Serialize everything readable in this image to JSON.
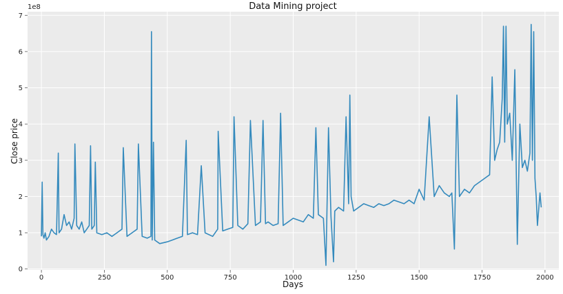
{
  "chart_data": {
    "type": "line",
    "title": "Data Mining project",
    "xlabel": "Days",
    "ylabel": "Close price",
    "y_offset_label": "1e8",
    "xlim": [
      -55,
      2055
    ],
    "ylim": [
      -2500000,
      710000000
    ],
    "x_ticks": [
      0,
      250,
      500,
      750,
      1000,
      1250,
      1500,
      1750,
      2000
    ],
    "x_tick_labels": [
      "0",
      "250",
      "500",
      "750",
      "1000",
      "1250",
      "1500",
      "1750",
      "2000"
    ],
    "y_ticks": [
      0,
      100000000,
      200000000,
      300000000,
      400000000,
      500000000,
      600000000,
      700000000
    ],
    "y_tick_labels": [
      "0",
      "1",
      "2",
      "3",
      "4",
      "5",
      "6",
      "7"
    ],
    "grid": true,
    "background": "#ebebeb",
    "grid_color": "#ffffff",
    "line_color": "#348abd",
    "series": [
      {
        "x": [
          0,
          3,
          6,
          10,
          15,
          20,
          30,
          40,
          50,
          60,
          67,
          70,
          80,
          90,
          100,
          110,
          120,
          130,
          133,
          140,
          150,
          160,
          170,
          180,
          190,
          195,
          200,
          210,
          214,
          220,
          240,
          260,
          280,
          300,
          320,
          325,
          340,
          360,
          380,
          385,
          400,
          420,
          435,
          437,
          440,
          445,
          450,
          470,
          500,
          520,
          540,
          560,
          575,
          580,
          600,
          620,
          635,
          650,
          680,
          700,
          702,
          720,
          740,
          760,
          765,
          780,
          800,
          820,
          830,
          850,
          870,
          880,
          890,
          900,
          920,
          940,
          950,
          960,
          980,
          1000,
          1020,
          1040,
          1060,
          1080,
          1090,
          1100,
          1120,
          1130,
          1140,
          1150,
          1160,
          1165,
          1180,
          1200,
          1210,
          1220,
          1225,
          1230,
          1240,
          1260,
          1280,
          1300,
          1320,
          1340,
          1360,
          1380,
          1400,
          1420,
          1440,
          1460,
          1480,
          1500,
          1520,
          1540,
          1560,
          1580,
          1600,
          1620,
          1630,
          1640,
          1650,
          1660,
          1680,
          1700,
          1720,
          1740,
          1760,
          1780,
          1790,
          1800,
          1810,
          1820,
          1830,
          1835,
          1840,
          1845,
          1850,
          1860,
          1870,
          1880,
          1890,
          1900,
          1910,
          1920,
          1930,
          1940,
          1945,
          1950,
          1955,
          1960,
          1965,
          1970,
          1980,
          1985
        ],
        "y": [
          90000000,
          240000000,
          95000000,
          85000000,
          100000000,
          80000000,
          90000000,
          110000000,
          100000000,
          95000000,
          320000000,
          100000000,
          110000000,
          150000000,
          120000000,
          130000000,
          110000000,
          140000000,
          345000000,
          120000000,
          110000000,
          130000000,
          100000000,
          110000000,
          120000000,
          340000000,
          110000000,
          120000000,
          295000000,
          100000000,
          95000000,
          100000000,
          90000000,
          100000000,
          110000000,
          335000000,
          90000000,
          100000000,
          110000000,
          345000000,
          90000000,
          85000000,
          90000000,
          655000000,
          80000000,
          350000000,
          80000000,
          70000000,
          75000000,
          80000000,
          85000000,
          90000000,
          355000000,
          95000000,
          100000000,
          95000000,
          285000000,
          100000000,
          90000000,
          110000000,
          380000000,
          105000000,
          110000000,
          115000000,
          420000000,
          120000000,
          110000000,
          125000000,
          410000000,
          120000000,
          130000000,
          410000000,
          125000000,
          130000000,
          120000000,
          125000000,
          430000000,
          120000000,
          130000000,
          140000000,
          135000000,
          130000000,
          150000000,
          140000000,
          390000000,
          150000000,
          140000000,
          10000000,
          390000000,
          145000000,
          20000000,
          160000000,
          170000000,
          160000000,
          420000000,
          180000000,
          480000000,
          200000000,
          160000000,
          170000000,
          180000000,
          175000000,
          170000000,
          180000000,
          175000000,
          180000000,
          190000000,
          185000000,
          180000000,
          190000000,
          180000000,
          220000000,
          190000000,
          420000000,
          200000000,
          230000000,
          210000000,
          200000000,
          210000000,
          55000000,
          480000000,
          200000000,
          220000000,
          210000000,
          230000000,
          240000000,
          250000000,
          260000000,
          530000000,
          300000000,
          330000000,
          350000000,
          470000000,
          670000000,
          350000000,
          670000000,
          400000000,
          430000000,
          300000000,
          550000000,
          68000000,
          400000000,
          280000000,
          300000000,
          270000000,
          320000000,
          675000000,
          300000000,
          655000000,
          250000000,
          200000000,
          120000000,
          210000000,
          170000000
        ]
      }
    ]
  }
}
